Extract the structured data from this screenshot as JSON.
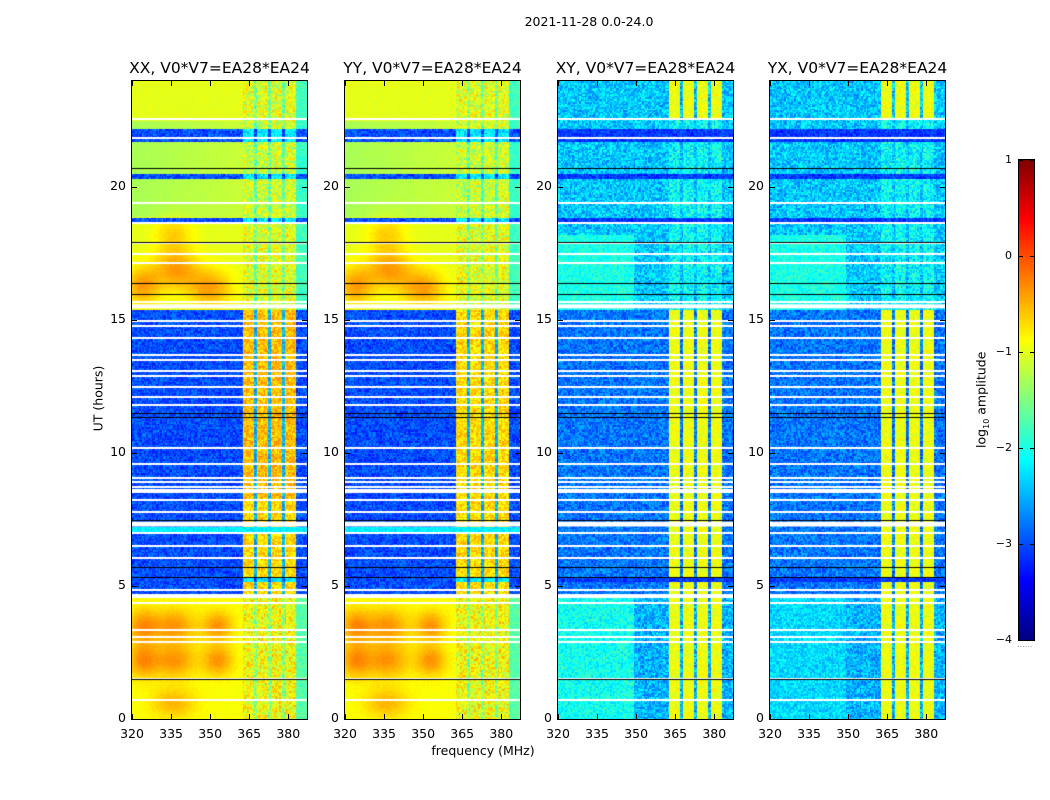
{
  "chart_data": {
    "type": "heatmap",
    "title": "2021-11-28 0.0-24.0",
    "xlabel": "frequency (MHz)",
    "ylabel": "UT (hours)",
    "xlim": [
      320,
      387.2
    ],
    "ylim": [
      0,
      24
    ],
    "xticks": [
      320,
      335,
      350,
      365,
      380
    ],
    "xtick_labels": [
      "320",
      "335",
      "350",
      "365",
      "380"
    ],
    "yticks": [
      0,
      5,
      10,
      15,
      20
    ],
    "ytick_labels": [
      "0",
      "5",
      "10",
      "15",
      "20"
    ],
    "panels": [
      {
        "title": "XX, V0*V7=EA28*EA24",
        "pol": "parallel"
      },
      {
        "title": "YY, V0*V7=EA28*EA24",
        "pol": "parallel"
      },
      {
        "title": "XY, V0*V7=EA28*EA24",
        "pol": "cross"
      },
      {
        "title": "YX, V0*V7=EA28*EA24",
        "pol": "cross"
      }
    ],
    "colorbar": {
      "label_main": "log",
      "label_sub": "10",
      "label_rest": " amplitude",
      "range": [
        -4,
        1
      ],
      "ticks": [
        1,
        0,
        -1,
        -2,
        -3,
        -4
      ],
      "tick_labels": [
        "1",
        "0",
        "−1",
        "−2",
        "−3",
        "−4"
      ],
      "colormap": "jet",
      "dots": "......"
    },
    "rfi_band_mhz": [
      362.5,
      383
    ],
    "rfi_gaps_mhz": [
      367.5,
      372.8,
      378.2
    ],
    "segments_h": {
      "day_high": [
        15.4,
        24
      ],
      "night_low": [
        4.7,
        15.4
      ],
      "early_high": [
        0,
        4.7
      ]
    },
    "levels_log10": {
      "parallel": {
        "high_segments": -0.9,
        "low_segment": -3.0,
        "rfi": -0.7,
        "peak_blobs": -0.3
      },
      "cross": {
        "background": -2.6,
        "upper_background": -2.4,
        "rfi": -0.95
      }
    },
    "flagged_times_h": [
      22.58,
      21.86,
      19.4,
      18.64,
      17.9,
      17.5,
      17.14,
      15.67,
      14.96,
      14.8,
      14.32,
      13.7,
      13.5,
      13.1,
      12.9,
      12.5,
      12.1,
      11.8,
      10.2,
      9.6,
      9.07,
      8.9,
      8.74,
      8.6,
      8.55,
      8.25,
      7.8,
      7.0,
      6.52,
      6.07,
      4.87,
      4.38,
      3.34,
      3.1,
      2.9,
      1.52,
      0.7
    ],
    "flagged_bands_h": [
      [
        15.45,
        15.6
      ],
      [
        7.24,
        7.42
      ],
      [
        4.55,
        4.7
      ]
    ],
    "dropout_bands_h": [
      [
        21.7,
        22.2
      ],
      [
        20.3,
        20.5
      ],
      [
        18.7,
        18.86
      ],
      [
        5.17,
        5.3
      ]
    ],
    "black_lines_h": [
      20.74,
      17.96,
      16.4,
      16.0,
      11.36,
      11.5,
      7.5,
      5.7,
      5.35,
      1.52
    ],
    "cyan_band_h": [
      7.0,
      7.24
    ]
  }
}
